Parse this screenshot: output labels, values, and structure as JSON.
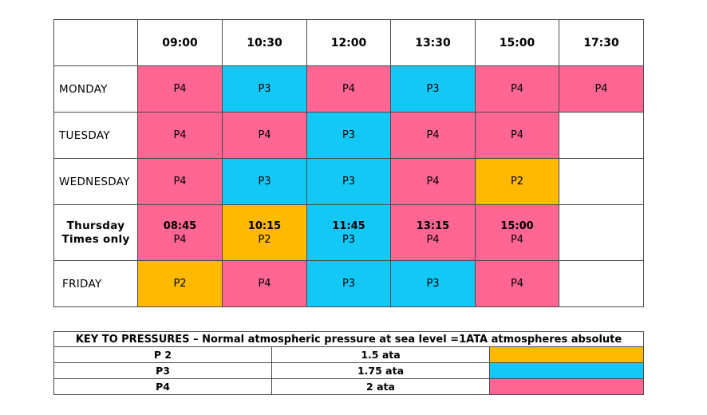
{
  "colors": {
    "P2": "#FFBA00",
    "P3": "#14C8F5",
    "P4": "#FF6694",
    "none": "#FFFFFF"
  },
  "schedule": {
    "times": [
      "09:00",
      "10:30",
      "12:00",
      "13:30",
      "15:00",
      "17:30"
    ],
    "rows": [
      {
        "day": "MONDAY",
        "cells": [
          {
            "level": "P4",
            "label": "P4"
          },
          {
            "level": "P3",
            "label": "P3"
          },
          {
            "level": "P4",
            "label": "P4"
          },
          {
            "level": "P3",
            "label": "P3"
          },
          {
            "level": "P4",
            "label": "P4"
          },
          {
            "level": "P4",
            "label": "P4"
          }
        ]
      },
      {
        "day": "TUESDAY",
        "cells": [
          {
            "level": "P4",
            "label": "P4"
          },
          {
            "level": "P4",
            "label": "P4"
          },
          {
            "level": "P3",
            "label": "P3"
          },
          {
            "level": "P4",
            "label": "P4"
          },
          {
            "level": "P4",
            "label": "P4"
          },
          {
            "level": "none",
            "label": ""
          }
        ]
      },
      {
        "day": "WEDNESDAY",
        "cells": [
          {
            "level": "P4",
            "label": "P4"
          },
          {
            "level": "P3",
            "label": "P3"
          },
          {
            "level": "P3",
            "label": "P3"
          },
          {
            "level": "P4",
            "label": "P4"
          },
          {
            "level": "P2",
            "label": "P2"
          },
          {
            "level": "none",
            "label": ""
          }
        ]
      },
      {
        "day_line1": "Thursday",
        "day_line2": "Times only",
        "cells": [
          {
            "time": "08:45",
            "level": "P4",
            "label": "P4"
          },
          {
            "time": "10:15",
            "level": "P2",
            "label": "P2"
          },
          {
            "time": "11:45",
            "level": "P3",
            "label": "P3"
          },
          {
            "time": "13:15",
            "level": "P4",
            "label": "P4"
          },
          {
            "time": "15:00",
            "level": "P4",
            "label": "P4"
          },
          {
            "time": "",
            "level": "none",
            "label": ""
          }
        ]
      },
      {
        "day": "FRIDAY",
        "cells": [
          {
            "level": "P2",
            "label": "P2"
          },
          {
            "level": "P4",
            "label": "P4"
          },
          {
            "level": "P3",
            "label": "P3"
          },
          {
            "level": "P3",
            "label": "P3"
          },
          {
            "level": "P4",
            "label": "P4"
          },
          {
            "level": "none",
            "label": ""
          }
        ]
      }
    ]
  },
  "key": {
    "title": "KEY TO PRESSURES – Normal atmospheric pressure at sea level =1ATA atmospheres absolute",
    "rows": [
      {
        "label": "P 2",
        "value": "1.5 ata",
        "level": "P2"
      },
      {
        "label": "P3",
        "value": "1.75 ata",
        "level": "P3"
      },
      {
        "label": "P4",
        "value": "2 ata",
        "level": "P4"
      }
    ]
  }
}
